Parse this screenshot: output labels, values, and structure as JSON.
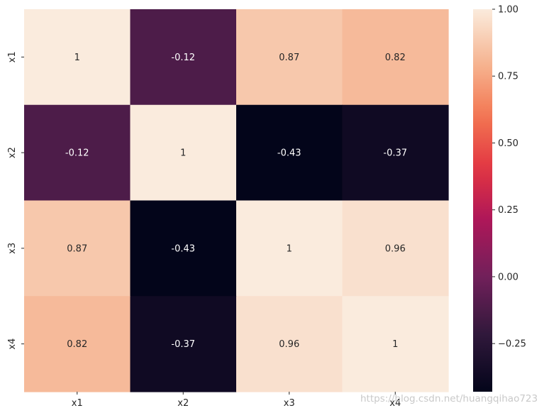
{
  "watermark": "https://blog.csdn.net/huangqihao723",
  "chart_data": {
    "type": "heatmap",
    "x_categories": [
      "x1",
      "x2",
      "x3",
      "x4"
    ],
    "y_categories": [
      "x1",
      "x2",
      "x3",
      "x4"
    ],
    "values": [
      [
        1,
        -0.12,
        0.87,
        0.82
      ],
      [
        -0.12,
        1,
        -0.43,
        -0.37
      ],
      [
        0.87,
        -0.43,
        1,
        0.96
      ],
      [
        0.82,
        -0.37,
        0.96,
        1
      ]
    ],
    "annotations": [
      [
        "1",
        "-0.12",
        "0.87",
        "0.82"
      ],
      [
        "-0.12",
        "1",
        "-0.43",
        "-0.37"
      ],
      [
        "0.87",
        "-0.43",
        "1",
        "0.96"
      ],
      [
        "0.82",
        "-0.37",
        "0.96",
        "1"
      ]
    ],
    "colorbar": {
      "range": [
        -0.43,
        1.0
      ],
      "ticks": [
        -0.25,
        0.0,
        0.25,
        0.5,
        0.75,
        1.0
      ],
      "tick_labels": [
        "−0.25",
        "0.00",
        "0.25",
        "0.50",
        "0.75",
        "1.00"
      ],
      "colormap": "rocket"
    },
    "annotation_colors": {
      "on_dark": "#ffffff",
      "on_light": "#262626"
    },
    "legend_placement": "right"
  }
}
